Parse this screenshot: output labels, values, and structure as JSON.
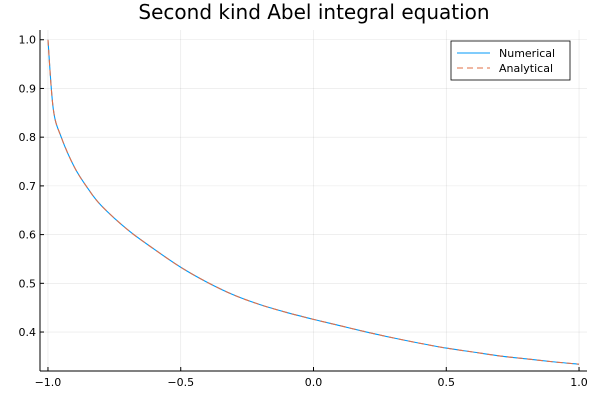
{
  "chart_data": {
    "type": "line",
    "title": "Second kind Abel integral equation",
    "xlabel": "",
    "ylabel": "",
    "xlim": [
      -1.03,
      1.03
    ],
    "ylim": [
      0.32,
      1.02
    ],
    "x_ticks": [
      -1.0,
      -0.5,
      0.0,
      0.5,
      1.0
    ],
    "x_tick_labels": [
      "−1.0",
      "−0.5",
      "0.0",
      "0.5",
      "1.0"
    ],
    "y_ticks": [
      0.4,
      0.5,
      0.6,
      0.7,
      0.8,
      0.9,
      1.0
    ],
    "y_tick_labels": [
      "0.4",
      "0.5",
      "0.6",
      "0.7",
      "0.8",
      "0.9",
      "1.0"
    ],
    "grid": true,
    "legend_position": "top-right",
    "x": [
      -1.0,
      -0.98,
      -0.95,
      -0.9,
      -0.85,
      -0.8,
      -0.7,
      -0.6,
      -0.5,
      -0.4,
      -0.3,
      -0.2,
      -0.1,
      0.0,
      0.1,
      0.2,
      0.3,
      0.4,
      0.5,
      0.6,
      0.7,
      0.8,
      0.9,
      1.0
    ],
    "series": [
      {
        "name": "Numerical",
        "color": "#009af9",
        "dash": "solid",
        "values": [
          1.0,
          0.858,
          0.8,
          0.738,
          0.695,
          0.66,
          0.61,
          0.57,
          0.533,
          0.502,
          0.476,
          0.456,
          0.44,
          0.426,
          0.413,
          0.4,
          0.388,
          0.377,
          0.367,
          0.359,
          0.351,
          0.345,
          0.339,
          0.334
        ]
      },
      {
        "name": "Analytical",
        "color": "#e26f46",
        "dash": "dashed",
        "values": [
          1.0,
          0.858,
          0.8,
          0.738,
          0.695,
          0.66,
          0.61,
          0.57,
          0.533,
          0.502,
          0.476,
          0.456,
          0.44,
          0.426,
          0.413,
          0.4,
          0.388,
          0.377,
          0.367,
          0.359,
          0.351,
          0.345,
          0.339,
          0.334
        ]
      }
    ]
  }
}
